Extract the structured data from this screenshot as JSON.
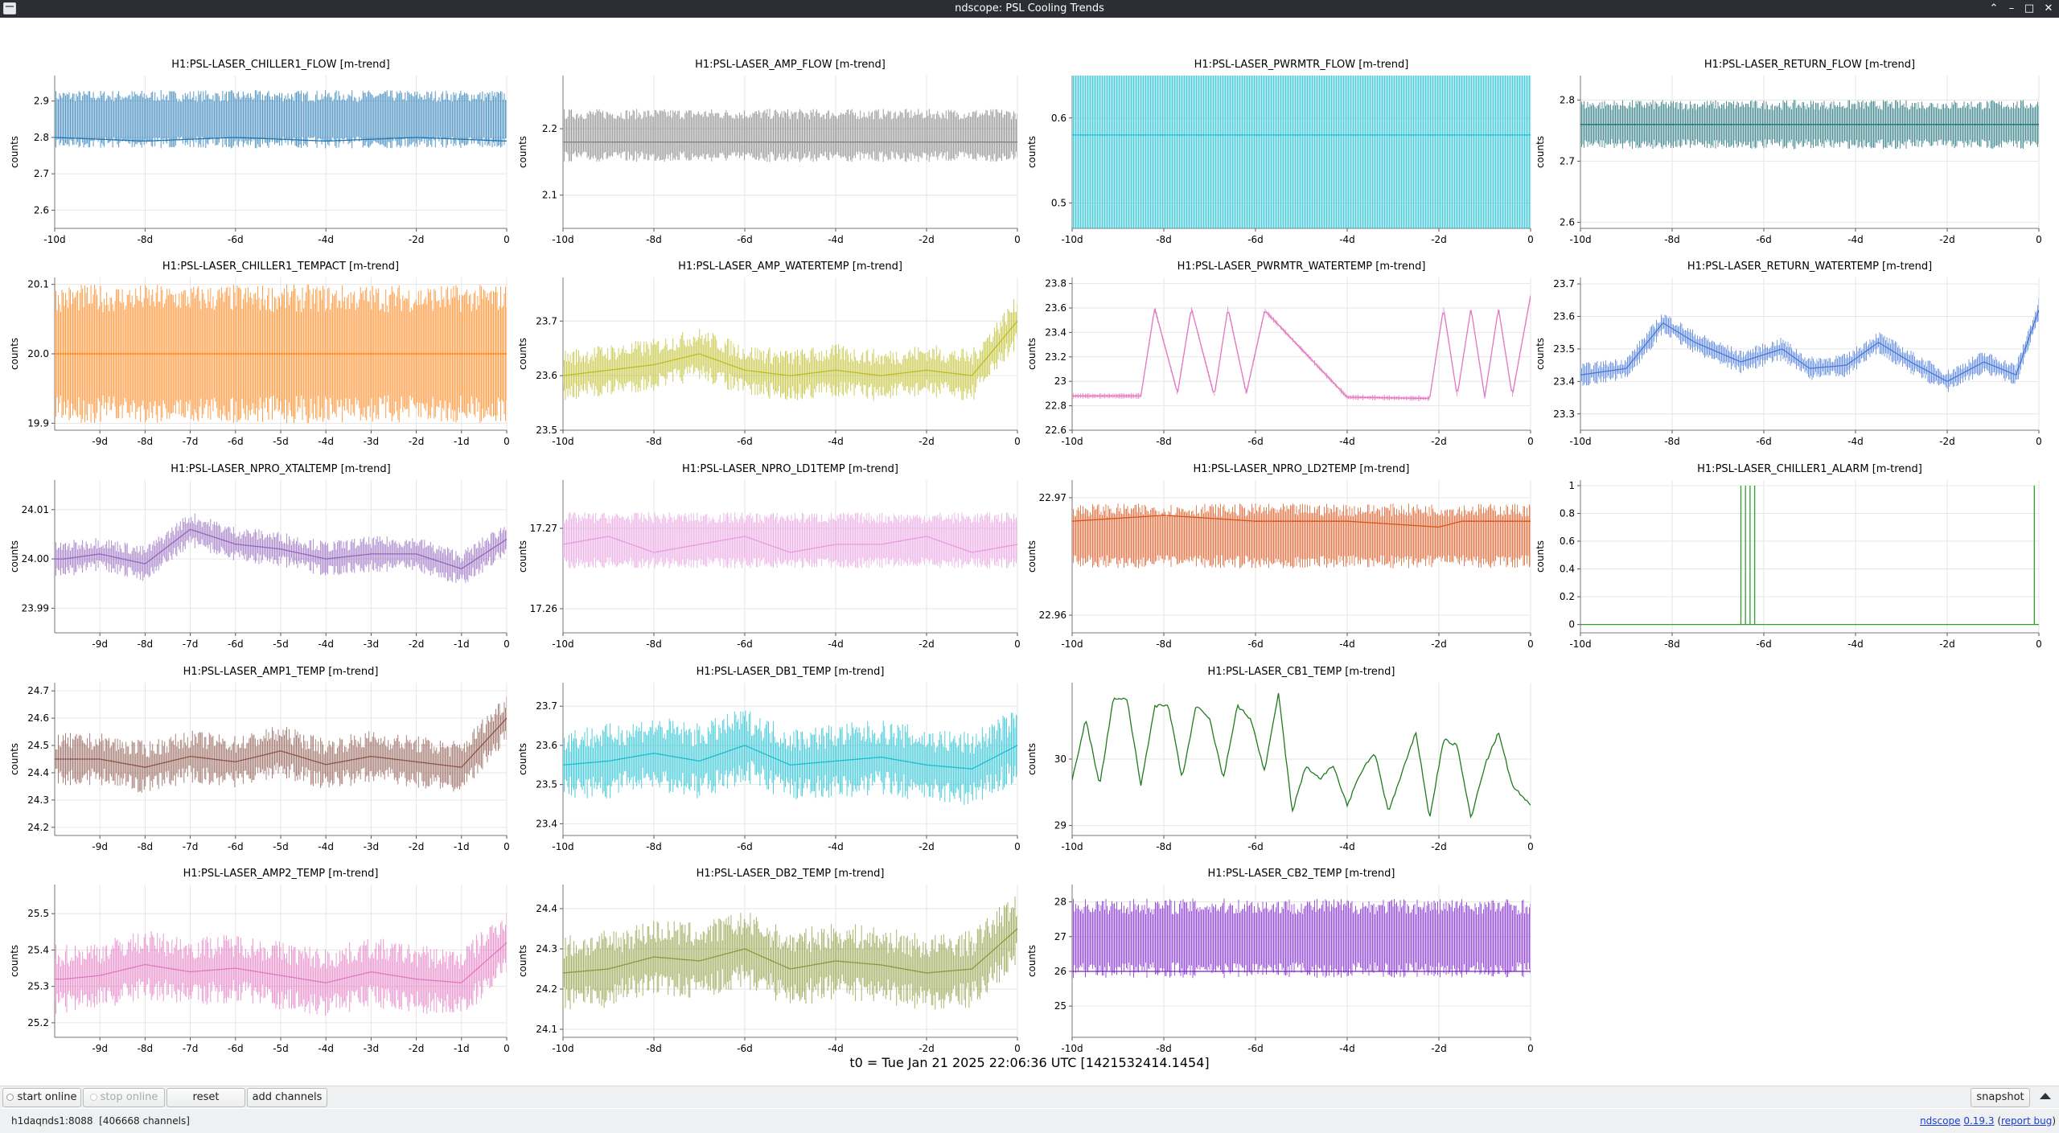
{
  "window": {
    "title": "ndscope: PSL Cooling Trends",
    "minimize_glyph": "–",
    "maximize_glyph": "□",
    "close_glyph": "✕",
    "shade_glyph": "⌃"
  },
  "axis_label": "counts",
  "t0_text": "t0 = Tue Jan 21 2025 22:06:36 UTC [1421532414.1454]",
  "toolbar": {
    "start_online": "start online",
    "stop_online": "stop online",
    "reset": "reset",
    "add_channels": "add channels",
    "snapshot": "snapshot"
  },
  "status": {
    "server": "h1daqnds1:8088",
    "channel_count": "[406668 channels]",
    "app_name": "ndscope",
    "version": "0.19.3",
    "report_bug": "report bug"
  },
  "chart_data": [
    {
      "title": "H1:PSL-LASER_CHILLER1_FLOW [m-trend]",
      "type": "line",
      "color": "#1f77b4",
      "ylabel": "counts",
      "ylim": [
        2.55,
        2.97
      ],
      "yticks": [
        {
          "v": 2.6,
          "t": "2.6"
        },
        {
          "v": 2.7,
          "t": "2.7"
        },
        {
          "v": 2.8,
          "t": "2.8"
        },
        {
          "v": 2.9,
          "t": "2.9"
        }
      ],
      "xticks": [
        "-10d",
        "-8d",
        "-6d",
        "-4d",
        "-2d",
        "0"
      ],
      "x": [
        -10,
        -8,
        -6,
        -4,
        -2,
        0
      ],
      "y": [
        2.8,
        2.79,
        2.8,
        2.79,
        2.8,
        2.79
      ],
      "band": [
        2.77,
        2.93
      ]
    },
    {
      "title": "H1:PSL-LASER_AMP_FLOW [m-trend]",
      "type": "line",
      "color": "#7f7f7f",
      "ylabel": "counts",
      "ylim": [
        2.05,
        2.28
      ],
      "yticks": [
        {
          "v": 2.1,
          "t": "2.1"
        },
        {
          "v": 2.2,
          "t": "2.2"
        }
      ],
      "xticks": [
        "-10d",
        "-8d",
        "-6d",
        "-4d",
        "-2d",
        "0"
      ],
      "x": [
        -10,
        -8,
        -6,
        -4,
        -2,
        0
      ],
      "y": [
        2.18,
        2.18,
        2.18,
        2.18,
        2.18,
        2.18
      ],
      "band": [
        2.15,
        2.23
      ]
    },
    {
      "title": "H1:PSL-LASER_PWRMTR_FLOW [m-trend]",
      "type": "line",
      "color": "#17becf",
      "ylabel": "counts",
      "ylim": [
        0.47,
        0.65
      ],
      "yticks": [
        {
          "v": 0.5,
          "t": "0.5"
        },
        {
          "v": 0.6,
          "t": "0.6"
        }
      ],
      "xticks": [
        "-10d",
        "-8d",
        "-6d",
        "-4d",
        "-2d",
        "0"
      ],
      "x": [
        -10,
        -8,
        -6,
        -4,
        -2,
        0
      ],
      "y": [
        0.58,
        0.58,
        0.58,
        0.58,
        0.58,
        0.58
      ],
      "band": [
        0.53,
        0.63
      ]
    },
    {
      "title": "H1:PSL-LASER_RETURN_FLOW [m-trend]",
      "type": "line",
      "color": "#1b6f78",
      "ylabel": "counts",
      "ylim": [
        2.59,
        2.84
      ],
      "yticks": [
        {
          "v": 2.6,
          "t": "2.6"
        },
        {
          "v": 2.7,
          "t": "2.7"
        },
        {
          "v": 2.8,
          "t": "2.8"
        }
      ],
      "xticks": [
        "-10d",
        "-8d",
        "-6d",
        "-4d",
        "-2d",
        "0"
      ],
      "x": [
        -10,
        -8,
        -6,
        -4,
        -2,
        0
      ],
      "y": [
        2.76,
        2.76,
        2.76,
        2.76,
        2.76,
        2.76
      ],
      "band": [
        2.72,
        2.8
      ]
    },
    {
      "title": "H1:PSL-LASER_CHILLER1_TEMPACT [m-trend]",
      "type": "line",
      "color": "#ff7f0e",
      "ylabel": "counts",
      "ylim": [
        19.89,
        20.11
      ],
      "yticks": [
        {
          "v": 19.9,
          "t": "19.9"
        },
        {
          "v": 20.0,
          "t": "20.0"
        },
        {
          "v": 20.1,
          "t": "20.1"
        }
      ],
      "xticks": [
        "-9d",
        "-8d",
        "-7d",
        "-6d",
        "-5d",
        "-4d",
        "-3d",
        "-2d",
        "-1d",
        "0"
      ],
      "x": [
        -9.8,
        -8,
        -6,
        -4,
        -2,
        0
      ],
      "y": [
        20.0,
        20.0,
        20.0,
        20.0,
        20.0,
        20.0
      ],
      "band": [
        19.9,
        20.1
      ]
    },
    {
      "title": "H1:PSL-LASER_AMP_WATERTEMP [m-trend]",
      "type": "line",
      "color": "#bcbd22",
      "ylabel": "counts",
      "ylim": [
        23.5,
        23.78
      ],
      "yticks": [
        {
          "v": 23.5,
          "t": "23.5"
        },
        {
          "v": 23.6,
          "t": "23.6"
        },
        {
          "v": 23.7,
          "t": "23.7"
        }
      ],
      "xticks": [
        "-10d",
        "-8d",
        "-6d",
        "-4d",
        "-2d",
        "0"
      ],
      "x": [
        -10,
        -9,
        -8,
        -7,
        -6,
        -5,
        -4,
        -3,
        -2,
        -1,
        0
      ],
      "y": [
        23.6,
        23.61,
        23.62,
        23.64,
        23.61,
        23.6,
        23.61,
        23.6,
        23.61,
        23.6,
        23.7
      ],
      "band": [
        0.04,
        0.04
      ]
    },
    {
      "title": "H1:PSL-LASER_PWRMTR_WATERTEMP [m-trend]",
      "type": "line",
      "color": "#e377c2",
      "ylabel": "counts",
      "ylim": [
        22.6,
        23.85
      ],
      "yticks": [
        {
          "v": 22.6,
          "t": "22.6"
        },
        {
          "v": 22.8,
          "t": "22.8"
        },
        {
          "v": 23.0,
          "t": "23"
        },
        {
          "v": 23.2,
          "t": "23.2"
        },
        {
          "v": 23.4,
          "t": "23.4"
        },
        {
          "v": 23.6,
          "t": "23.6"
        },
        {
          "v": 23.8,
          "t": "23.8"
        }
      ],
      "xticks": [
        "-10d",
        "-8d",
        "-6d",
        "-4d",
        "-2d",
        "0"
      ],
      "x": [
        -10,
        -8.5,
        -8.2,
        -7.7,
        -7.4,
        -6.9,
        -6.6,
        -6.2,
        -5.8,
        -4,
        -2.2,
        -1.9,
        -1.6,
        -1.3,
        -1,
        -0.7,
        -0.4,
        0
      ],
      "y": [
        22.88,
        22.88,
        23.6,
        22.9,
        23.6,
        22.88,
        23.6,
        22.9,
        23.58,
        22.87,
        22.86,
        23.6,
        22.88,
        23.6,
        22.87,
        23.6,
        22.88,
        23.7
      ],
      "band": [
        0.02,
        0.02
      ]
    },
    {
      "title": "H1:PSL-LASER_RETURN_WATERTEMP [m-trend]",
      "type": "line",
      "color": "#4878d8",
      "ylabel": "counts",
      "ylim": [
        23.25,
        23.72
      ],
      "yticks": [
        {
          "v": 23.3,
          "t": "23.3"
        },
        {
          "v": 23.4,
          "t": "23.4"
        },
        {
          "v": 23.5,
          "t": "23.5"
        },
        {
          "v": 23.6,
          "t": "23.6"
        },
        {
          "v": 23.7,
          "t": "23.7"
        }
      ],
      "xticks": [
        "-10d",
        "-8d",
        "-6d",
        "-4d",
        "-2d",
        "0"
      ],
      "x": [
        -10,
        -9,
        -8.2,
        -7.5,
        -6.5,
        -5.6,
        -5,
        -4.2,
        -3.5,
        -2.8,
        -2,
        -1.2,
        -0.5,
        0
      ],
      "y": [
        23.42,
        23.44,
        23.58,
        23.52,
        23.46,
        23.5,
        23.44,
        23.45,
        23.52,
        23.46,
        23.4,
        23.46,
        23.42,
        23.62
      ],
      "band": [
        0.03,
        0.03
      ]
    },
    {
      "title": "H1:PSL-LASER_NPRO_XTALTEMP [m-trend]",
      "type": "line",
      "color": "#9467bd",
      "ylabel": "counts",
      "ylim": [
        23.985,
        24.016
      ],
      "yticks": [
        {
          "v": 23.99,
          "t": "23.99"
        },
        {
          "v": 24.0,
          "t": "24.00"
        },
        {
          "v": 24.01,
          "t": "24.01"
        }
      ],
      "xticks": [
        "-9d",
        "-8d",
        "-7d",
        "-6d",
        "-5d",
        "-4d",
        "-3d",
        "-2d",
        "-1d",
        "0"
      ],
      "x": [
        -9.8,
        -9,
        -8,
        -7,
        -6,
        -5,
        -4,
        -3,
        -2,
        -1,
        0
      ],
      "y": [
        24.0,
        24.001,
        23.999,
        24.006,
        24.003,
        24.002,
        24.0,
        24.001,
        24.001,
        23.998,
        24.004
      ],
      "band": [
        0.003,
        0.003
      ]
    },
    {
      "title": "H1:PSL-LASER_NPRO_LD1TEMP [m-trend]",
      "type": "line",
      "color": "#e89ce0",
      "ylabel": "counts",
      "ylim": [
        17.257,
        17.276
      ],
      "yticks": [
        {
          "v": 17.26,
          "t": "17.26"
        },
        {
          "v": 17.27,
          "t": "17.27"
        }
      ],
      "xticks": [
        "-10d",
        "-8d",
        "-6d",
        "-4d",
        "-2d",
        "0"
      ],
      "x": [
        -10,
        -9,
        -8,
        -7,
        -6,
        -5,
        -4,
        -3,
        -2,
        -1,
        0
      ],
      "y": [
        17.268,
        17.269,
        17.267,
        17.268,
        17.269,
        17.267,
        17.268,
        17.268,
        17.269,
        17.267,
        17.268
      ],
      "band": [
        17.265,
        17.272
      ]
    },
    {
      "title": "H1:PSL-LASER_NPRO_LD2TEMP [m-trend]",
      "type": "line",
      "color": "#d95319",
      "ylabel": "counts",
      "ylim": [
        22.9585,
        22.9715
      ],
      "yticks": [
        {
          "v": 22.96,
          "t": "22.96"
        },
        {
          "v": 22.97,
          "t": "22.97"
        }
      ],
      "xticks": [
        "-10d",
        "-8d",
        "-6d",
        "-4d",
        "-2d",
        "0"
      ],
      "x": [
        -10,
        -8,
        -6,
        -4,
        -2,
        -1.5,
        0
      ],
      "y": [
        22.968,
        22.9685,
        22.968,
        22.968,
        22.9675,
        22.968,
        22.968
      ],
      "band": [
        22.964,
        22.9695
      ]
    },
    {
      "title": "H1:PSL-LASER_CHILLER1_ALARM [m-trend]",
      "type": "line",
      "color": "#2ca02c",
      "ylabel": "counts",
      "ylim": [
        -0.06,
        1.04
      ],
      "yticks": [
        {
          "v": 0,
          "t": "0"
        },
        {
          "v": 0.2,
          "t": "0.2"
        },
        {
          "v": 0.4,
          "t": "0.4"
        },
        {
          "v": 0.6,
          "t": "0.6"
        },
        {
          "v": 0.8,
          "t": "0.8"
        },
        {
          "v": 1,
          "t": "1"
        }
      ],
      "xticks": [
        "-10d",
        "-8d",
        "-6d",
        "-4d",
        "-2d",
        "0"
      ],
      "x": [
        -10,
        -6.5,
        -6.5,
        -6.5,
        -6.4,
        -6.4,
        -6.4,
        -6.3,
        -6.3,
        -6.3,
        -6.2,
        -6.2,
        -6.2,
        -0.1,
        -0.1,
        -0.1,
        0
      ],
      "y": [
        0,
        0,
        1,
        0,
        0,
        1,
        0,
        0,
        1,
        0,
        0,
        1,
        0,
        0,
        1,
        0,
        0
      ]
    },
    {
      "title": "H1:PSL-LASER_AMP1_TEMP [m-trend]",
      "type": "line",
      "color": "#8c564b",
      "ylabel": "counts",
      "ylim": [
        24.17,
        24.73
      ],
      "yticks": [
        {
          "v": 24.2,
          "t": "24.2"
        },
        {
          "v": 24.3,
          "t": "24.3"
        },
        {
          "v": 24.4,
          "t": "24.4"
        },
        {
          "v": 24.5,
          "t": "24.5"
        },
        {
          "v": 24.6,
          "t": "24.6"
        },
        {
          "v": 24.7,
          "t": "24.7"
        }
      ],
      "xticks": [
        "-9d",
        "-8d",
        "-7d",
        "-6d",
        "-5d",
        "-4d",
        "-3d",
        "-2d",
        "-1d",
        "0"
      ],
      "x": [
        -9.8,
        -9,
        -8,
        -7,
        -6,
        -5,
        -4,
        -3,
        -2,
        -1,
        0
      ],
      "y": [
        24.45,
        24.45,
        24.42,
        24.46,
        24.44,
        24.48,
        24.43,
        24.46,
        24.44,
        24.42,
        24.6
      ],
      "band": [
        0.08,
        0.08
      ]
    },
    {
      "title": "H1:PSL-LASER_DB1_TEMP [m-trend]",
      "type": "line",
      "color": "#17becf",
      "ylabel": "counts",
      "ylim": [
        23.37,
        23.76
      ],
      "yticks": [
        {
          "v": 23.4,
          "t": "23.4"
        },
        {
          "v": 23.5,
          "t": "23.5"
        },
        {
          "v": 23.6,
          "t": "23.6"
        },
        {
          "v": 23.7,
          "t": "23.7"
        }
      ],
      "xticks": [
        "-10d",
        "-8d",
        "-6d",
        "-4d",
        "-2d",
        "0"
      ],
      "x": [
        -10,
        -9,
        -8,
        -7,
        -6,
        -5,
        -4,
        -3,
        -2,
        -1,
        0
      ],
      "y": [
        23.55,
        23.56,
        23.58,
        23.56,
        23.6,
        23.55,
        23.56,
        23.57,
        23.55,
        23.54,
        23.6
      ],
      "band": [
        0.08,
        0.08
      ]
    },
    {
      "title": "H1:PSL-LASER_CB1_TEMP [m-trend]",
      "type": "line",
      "color": "#1e7b1e",
      "ylabel": "counts",
      "ylim": [
        28.85,
        31.15
      ],
      "yticks": [
        {
          "v": 29,
          "t": "29"
        },
        {
          "v": 30,
          "t": "30"
        }
      ],
      "xticks": [
        "-10d",
        "-8d",
        "-6d",
        "-4d",
        "-2d",
        "0"
      ],
      "x": [
        -10,
        -9.7,
        -9.4,
        -9.1,
        -8.8,
        -8.5,
        -8.2,
        -7.9,
        -7.6,
        -7.3,
        -7,
        -6.7,
        -6.4,
        -6.1,
        -5.8,
        -5.5,
        -5.2,
        -4.9,
        -4.6,
        -4.3,
        -4,
        -3.7,
        -3.4,
        -3.1,
        -2.8,
        -2.5,
        -2.2,
        -1.9,
        -1.6,
        -1.3,
        -1,
        -0.7,
        -0.4,
        0
      ],
      "y": [
        29.7,
        30.6,
        29.6,
        30.9,
        30.9,
        29.6,
        30.8,
        30.8,
        29.7,
        30.8,
        30.6,
        29.7,
        30.8,
        30.6,
        29.8,
        31.0,
        29.2,
        29.9,
        29.7,
        29.9,
        29.3,
        29.8,
        30.1,
        29.2,
        29.8,
        30.4,
        29.1,
        30.3,
        30.2,
        29.1,
        29.9,
        30.4,
        29.6,
        29.3
      ]
    },
    {
      "title": "H1:PSL-LASER_AMP2_TEMP [m-trend]",
      "type": "line",
      "color": "#e377c2",
      "ylabel": "counts",
      "ylim": [
        25.16,
        25.58
      ],
      "yticks": [
        {
          "v": 25.2,
          "t": "25.2"
        },
        {
          "v": 25.3,
          "t": "25.3"
        },
        {
          "v": 25.4,
          "t": "25.4"
        },
        {
          "v": 25.5,
          "t": "25.5"
        }
      ],
      "xticks": [
        "-9d",
        "-8d",
        "-7d",
        "-6d",
        "-5d",
        "-4d",
        "-3d",
        "-2d",
        "-1d",
        "0"
      ],
      "x": [
        -9.8,
        -9,
        -8,
        -7,
        -6,
        -5,
        -4,
        -3,
        -2,
        -1,
        0
      ],
      "y": [
        25.32,
        25.33,
        25.36,
        25.34,
        25.35,
        25.33,
        25.31,
        25.34,
        25.32,
        25.31,
        25.42
      ],
      "band": [
        0.08,
        0.08
      ]
    },
    {
      "title": "H1:PSL-LASER_DB2_TEMP [m-trend]",
      "type": "line",
      "color": "#8c9a3c",
      "ylabel": "counts",
      "ylim": [
        24.08,
        24.46
      ],
      "yticks": [
        {
          "v": 24.1,
          "t": "24.1"
        },
        {
          "v": 24.2,
          "t": "24.2"
        },
        {
          "v": 24.3,
          "t": "24.3"
        },
        {
          "v": 24.4,
          "t": "24.4"
        }
      ],
      "xticks": [
        "-10d",
        "-8d",
        "-6d",
        "-4d",
        "-2d",
        "0"
      ],
      "x": [
        -10,
        -9,
        -8,
        -7,
        -6,
        -5,
        -4,
        -3,
        -2,
        -1,
        0
      ],
      "y": [
        24.24,
        24.25,
        24.28,
        24.27,
        24.3,
        24.25,
        24.27,
        24.26,
        24.24,
        24.25,
        24.35
      ],
      "band": [
        0.08,
        0.08
      ]
    },
    {
      "title": "H1:PSL-LASER_CB2_TEMP [m-trend]",
      "type": "line",
      "color": "#7b1fc8",
      "ylabel": "counts",
      "ylim": [
        24.1,
        28.5
      ],
      "yticks": [
        {
          "v": 25,
          "t": "25"
        },
        {
          "v": 26,
          "t": "26"
        },
        {
          "v": 27,
          "t": "27"
        },
        {
          "v": 28,
          "t": "28"
        }
      ],
      "xticks": [
        "-10d",
        "-8d",
        "-6d",
        "-4d",
        "-2d",
        "0"
      ],
      "x": [
        -10,
        0
      ],
      "y": [
        26.0,
        26.0
      ],
      "band": [
        25.8,
        28.1
      ]
    }
  ]
}
